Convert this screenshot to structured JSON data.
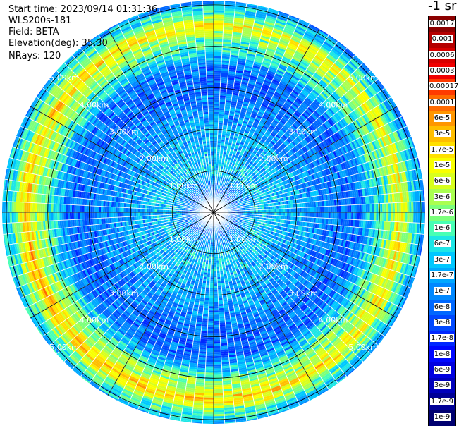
{
  "info": {
    "start_time": "Start time: 2023/09/14 01:31:36",
    "device": "WLS200s-181",
    "field": "Field: BETA",
    "elevation": "Elevation(deg): 35.30",
    "nrays": "NRays: 120"
  },
  "colorbar": {
    "title": "-1 sr",
    "labels": [
      "0.0017",
      "0.001",
      "0.0006",
      "0.0003",
      "0.00017",
      "0.0001",
      "6e-5",
      "3e-5",
      "1.7e-5",
      "1e-5",
      "6e-6",
      "3e-6",
      "1.7e-6",
      "1e-6",
      "6e-7",
      "3e-7",
      "1.7e-7",
      "1e-7",
      "6e-8",
      "3e-8",
      "1.7e-8",
      "1e-8",
      "6e-9",
      "3e-9",
      "1.7e-9",
      "1e-9"
    ],
    "colors": [
      "#8b0000",
      "#b50000",
      "#d80000",
      "#f00000",
      "#ff3a00",
      "#ff6a00",
      "#ff9600",
      "#ffbe00",
      "#ffe000",
      "#f8ff00",
      "#d8ff1e",
      "#aaff50",
      "#7cff7c",
      "#48ffb4",
      "#1ee6e6",
      "#00c8ff",
      "#00a8ff",
      "#0088ff",
      "#0068ff",
      "#0048ff",
      "#0028ff",
      "#0008ff",
      "#0000e0",
      "#0000bc",
      "#000096",
      "#000070"
    ]
  },
  "chart_data": {
    "type": "polar-ppi-heatmap",
    "field": "BETA",
    "elevation_deg": 35.3,
    "n_rays": 120,
    "range_unit": "km",
    "range_rings_km": [
      1.0,
      2.0,
      3.0,
      4.0,
      5.0
    ],
    "ring_labels": [
      "1.00km",
      "2.00km",
      "3.00km",
      "4.00km",
      "5.00km"
    ],
    "max_range_km": 5.1,
    "spoke_step_deg": 30,
    "color_scale": "log10",
    "value_range": [
      1e-09,
      0.0017
    ],
    "radial_profile": [
      {
        "r_km": 0.0,
        "value": 3e-07
      },
      {
        "r_km": 0.5,
        "value": 6e-08
      },
      {
        "r_km": 1.0,
        "value": 3e-07
      },
      {
        "r_km": 2.0,
        "value": 1.7e-07
      },
      {
        "r_km": 3.0,
        "value": 6e-08
      },
      {
        "r_km": 3.5,
        "value": 6e-08
      },
      {
        "r_km": 4.0,
        "value": 1e-06
      },
      {
        "r_km": 4.3,
        "value": 3e-06
      },
      {
        "r_km": 4.5,
        "value": 1.7e-05
      },
      {
        "r_km": 4.6,
        "value": 1e-05
      },
      {
        "r_km": 4.8,
        "value": 1e-06
      },
      {
        "r_km": 5.1,
        "value": 1.7e-07
      }
    ]
  }
}
